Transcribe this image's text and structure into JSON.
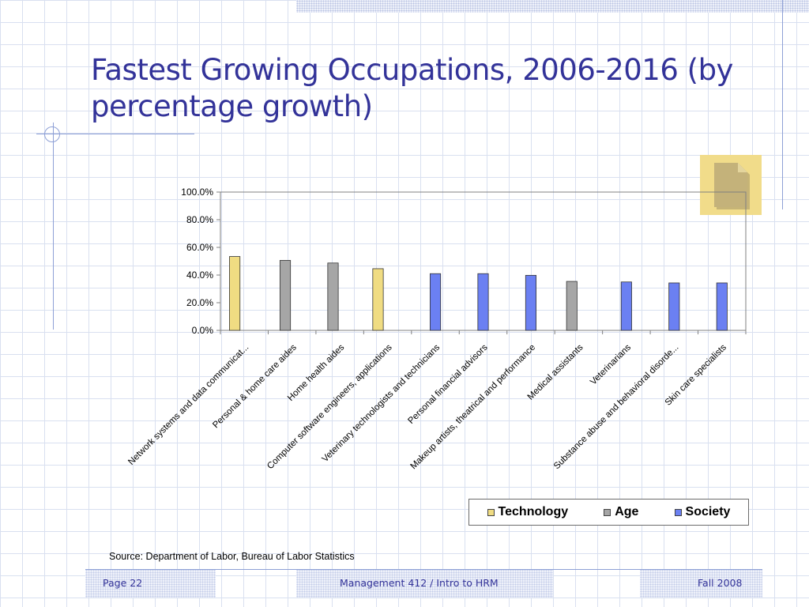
{
  "slide": {
    "title": "Fastest Growing Occupations, 2006-2016 (by percentage growth)",
    "source": "Source: Department of Labor, Bureau of Labor Statistics"
  },
  "footer": {
    "page": "Page 22",
    "course": "Management 412 / Intro to HRM",
    "term": "Fall 2008"
  },
  "icons": {
    "document": "document-icon"
  },
  "colors": {
    "title": "#333399",
    "Technology": "#f0dc82",
    "Age": "#a6a6a6",
    "Society": "#6b80f2"
  },
  "chart_data": {
    "type": "bar",
    "categories": [
      "Network systems and data communicat...",
      "Personal & home care aides",
      "Home health aides",
      "Computer software engineers, applications",
      "Veterinary technologists and technicians",
      "Personal financial advisors",
      "Makeup artists, theatrical and performance",
      "Medical assistants",
      "Veterinarians",
      "Substance abuse and behavioral disorde...",
      "Skin care specialists"
    ],
    "series": [
      {
        "name": "Technology",
        "values": [
          53.4,
          null,
          null,
          44.6,
          null,
          null,
          null,
          null,
          null,
          null,
          null
        ]
      },
      {
        "name": "Age",
        "values": [
          null,
          50.6,
          48.7,
          null,
          null,
          null,
          null,
          35.4,
          null,
          null,
          null
        ]
      },
      {
        "name": "Society",
        "values": [
          null,
          null,
          null,
          null,
          41.0,
          41.0,
          39.8,
          null,
          35.0,
          34.3,
          34.3
        ]
      }
    ],
    "ylim": [
      0,
      100
    ],
    "yticks": [
      "0.0%",
      "20.0%",
      "40.0%",
      "60.0%",
      "80.0%",
      "100.0%"
    ],
    "legend": [
      "Technology",
      "Age",
      "Society"
    ],
    "legend_position": "bottom-right",
    "grid": false
  }
}
